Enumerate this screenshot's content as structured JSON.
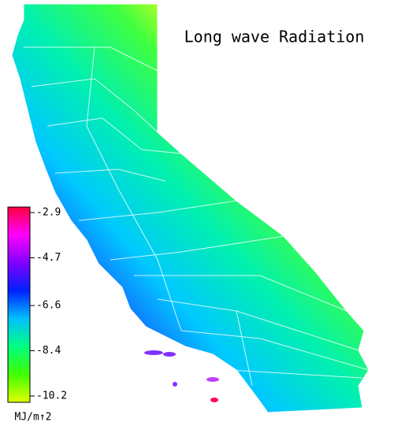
{
  "title": "Long wave Radiation",
  "colorbar": {
    "lim": [
      -10.2,
      -2.9
    ],
    "ticks": [
      -2.9,
      -4.7,
      -6.6,
      -8.4,
      -10.2
    ],
    "colors": [
      "#ff0040",
      "#ff00ff",
      "#8000ff",
      "#0020ff",
      "#00c0ff",
      "#00ff80",
      "#40ff00",
      "#e0ff00"
    ]
  },
  "unit": "MJ/m↑2"
}
